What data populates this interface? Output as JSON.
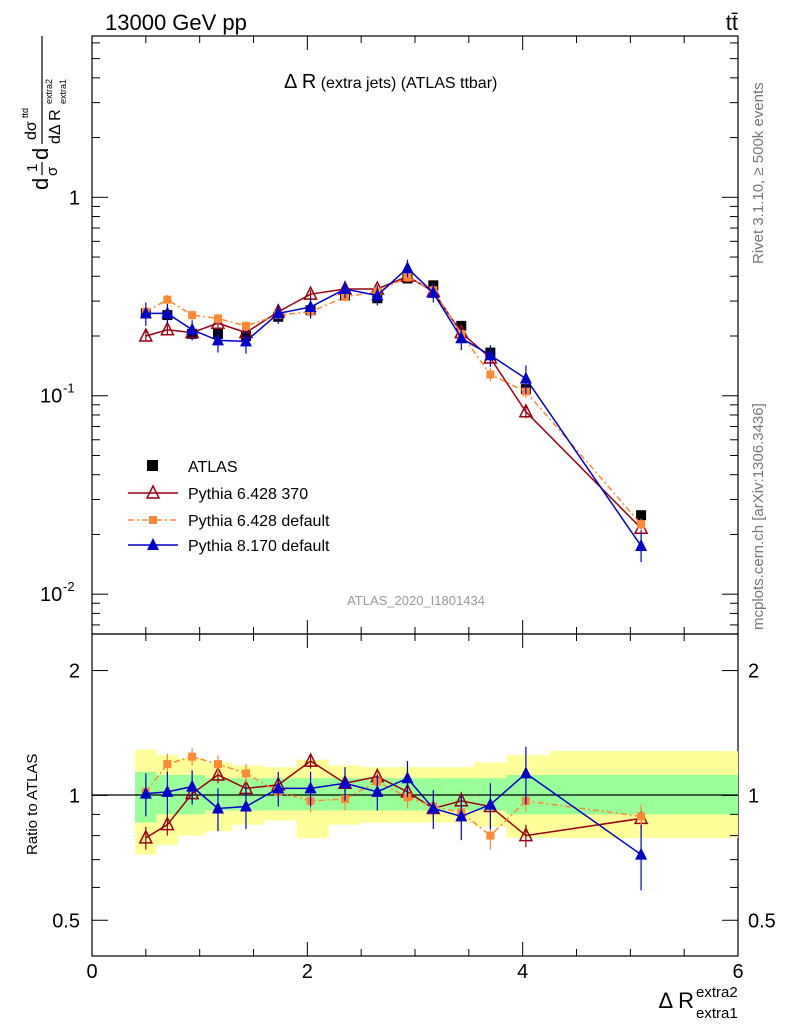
{
  "header": {
    "energy_label": "13000 GeV pp",
    "process_label": "tt̄",
    "plot_title_main": "Δ R",
    "plot_title_rest": " (extra jets) (ATLAS ttbar)",
    "analysis_id": "ATLAS_2020_I1801434",
    "side_rivet": "Rivet 3.1.10, ≥ 500k events",
    "side_mcplots": "mcplots.cern.ch [arXiv:1306.3436]"
  },
  "axes": {
    "main_ylabel": "dσ^{ttd} / dΔ R_{extra1}^{extra2} · 1/σ",
    "ratio_ylabel": "Ratio to ATLAS",
    "xlabel_base": "Δ R",
    "xlabel_sup": "extra2",
    "xlabel_sub": "extra1",
    "x_ticks": [
      "0",
      "2",
      "4",
      "6"
    ],
    "main_y_ticks": [
      "1",
      "10^{-1}",
      "10^{-2}"
    ],
    "ratio_y_ticks": [
      "2",
      "1",
      "0.5"
    ]
  },
  "legend": {
    "atlas": "ATLAS",
    "py6_370": "Pythia 6.428 370",
    "py6_def": "Pythia 6.428 default",
    "py8_def": "Pythia 8.170 default"
  },
  "chart_data": {
    "type": "line",
    "xlim": [
      0,
      6
    ],
    "main_ylim": [
      0.0063,
      6.5
    ],
    "main_yscale": "log",
    "ratio_ylim": [
      0.41,
      2.45
    ],
    "ratio_yscale": "log",
    "x": [
      0.5,
      0.7,
      0.93,
      1.17,
      1.43,
      1.73,
      2.03,
      2.35,
      2.65,
      2.93,
      3.17,
      3.43,
      3.7,
      4.03,
      5.1
    ],
    "series": [
      {
        "name": "ATLAS",
        "color": "#000000",
        "values": [
          0.26,
          0.255,
          0.205,
          0.205,
          0.2,
          0.25,
          0.27,
          0.32,
          0.31,
          0.39,
          0.36,
          0.225,
          0.165,
          0.108,
          0.025
        ]
      },
      {
        "name": "Pythia 6.428 370",
        "color": "#990011",
        "values": [
          0.2,
          0.215,
          0.208,
          0.232,
          0.208,
          0.265,
          0.325,
          0.345,
          0.345,
          0.4,
          0.335,
          0.208,
          0.155,
          0.083,
          0.0215
        ],
        "yerr": [
          0.012,
          0.012,
          0.012,
          0.013,
          0.012,
          0.014,
          0.016,
          0.016,
          0.016,
          0.018,
          0.016,
          0.012,
          0.01,
          0.006,
          0.0015
        ]
      },
      {
        "name": "Pythia 6.428 default",
        "color": "#ff8833",
        "values": [
          0.265,
          0.305,
          0.255,
          0.245,
          0.225,
          0.255,
          0.265,
          0.315,
          0.335,
          0.395,
          0.34,
          0.205,
          0.128,
          0.105,
          0.0225
        ],
        "yerr": [
          0.014,
          0.018,
          0.014,
          0.014,
          0.012,
          0.014,
          0.016,
          0.016,
          0.016,
          0.018,
          0.016,
          0.012,
          0.01,
          0.008,
          0.0015
        ]
      },
      {
        "name": "Pythia 8.170 default",
        "color": "#0000cc",
        "values": [
          0.26,
          0.26,
          0.215,
          0.19,
          0.188,
          0.26,
          0.28,
          0.345,
          0.32,
          0.44,
          0.33,
          0.195,
          0.16,
          0.122,
          0.0175
        ],
        "yerr": [
          0.035,
          0.03,
          0.025,
          0.025,
          0.025,
          0.03,
          0.035,
          0.035,
          0.035,
          0.045,
          0.035,
          0.025,
          0.02,
          0.02,
          0.003
        ]
      }
    ],
    "ratio_series": [
      {
        "name": "Pythia 6.428 370",
        "values": [
          0.79,
          0.85,
          1.01,
          1.12,
          1.04,
          1.06,
          1.21,
          1.07,
          1.11,
          1.02,
          0.93,
          0.97,
          0.94,
          0.8,
          0.88
        ],
        "yerr": [
          0.05,
          0.05,
          0.05,
          0.05,
          0.05,
          0.05,
          0.05,
          0.05,
          0.05,
          0.05,
          0.05,
          0.05,
          0.05,
          0.05,
          0.05
        ]
      },
      {
        "name": "Pythia 6.428 default",
        "values": [
          1.02,
          1.19,
          1.24,
          1.19,
          1.13,
          1.02,
          0.97,
          0.98,
          1.08,
          0.99,
          0.94,
          0.91,
          0.8,
          0.97,
          0.89
        ],
        "yerr": [
          0.06,
          0.07,
          0.06,
          0.06,
          0.06,
          0.06,
          0.06,
          0.06,
          0.06,
          0.06,
          0.06,
          0.06,
          0.06,
          0.06,
          0.06
        ]
      },
      {
        "name": "Pythia 8.170 default",
        "values": [
          1.01,
          1.02,
          1.05,
          0.93,
          0.94,
          1.04,
          1.04,
          1.07,
          1.02,
          1.1,
          0.93,
          0.89,
          0.95,
          1.13,
          0.72
        ],
        "yerr": [
          0.12,
          0.12,
          0.1,
          0.11,
          0.11,
          0.1,
          0.1,
          0.1,
          0.1,
          0.11,
          0.1,
          0.11,
          0.12,
          0.18,
          0.13
        ]
      }
    ],
    "ratio_bands": {
      "edges": [
        0.4,
        0.6,
        0.8,
        1.05,
        1.3,
        1.6,
        1.9,
        2.2,
        2.5,
        2.8,
        3.05,
        3.3,
        3.55,
        3.85,
        4.25,
        6.0
      ],
      "inner_lo": [
        0.86,
        0.9,
        0.9,
        0.92,
        0.92,
        0.92,
        0.92,
        0.92,
        0.92,
        0.92,
        0.92,
        0.92,
        0.92,
        0.9,
        0.9
      ],
      "inner_hi": [
        1.14,
        1.12,
        1.12,
        1.1,
        1.1,
        1.1,
        1.1,
        1.1,
        1.1,
        1.1,
        1.1,
        1.1,
        1.1,
        1.12,
        1.12
      ],
      "outer_lo": [
        0.72,
        0.76,
        0.8,
        0.82,
        0.85,
        0.87,
        0.79,
        0.85,
        0.86,
        0.86,
        0.86,
        0.86,
        0.84,
        0.79,
        0.79
      ],
      "outer_hi": [
        1.29,
        1.25,
        1.23,
        1.2,
        1.18,
        1.17,
        1.22,
        1.18,
        1.17,
        1.17,
        1.17,
        1.17,
        1.2,
        1.25,
        1.28
      ],
      "inner_color": "#99ff99",
      "outer_color": "#ffff99"
    }
  }
}
